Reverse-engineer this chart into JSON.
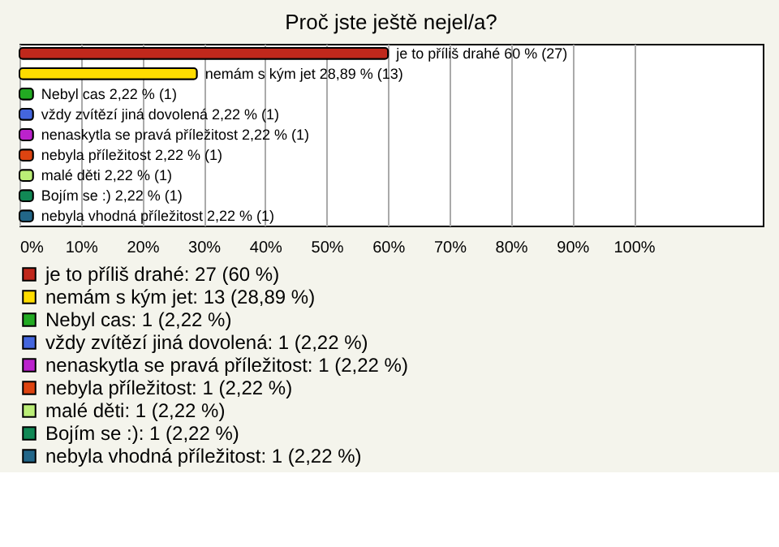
{
  "chart_data": {
    "type": "bar",
    "orientation": "horizontal",
    "title": "Proč jste ještě nejel/a?",
    "categories": [
      null,
      null,
      null,
      null,
      null,
      null,
      null,
      null,
      null
    ],
    "series": [
      {
        "name": "je to příliš drahé: 27 (60 %)",
        "color": "#c0281c",
        "values": [
          60,
          null,
          null,
          null,
          null,
          null,
          null,
          null,
          null
        ],
        "value_labels": [
          "je to příliš drahé 60 % (27)",
          null,
          null,
          null,
          null,
          null,
          null,
          null,
          null
        ]
      },
      {
        "name": "nemám s kým jet: 13 (28,89 %)",
        "color": "#ffdd00",
        "values": [
          null,
          28.89,
          null,
          null,
          null,
          null,
          null,
          null,
          null
        ],
        "value_labels": [
          null,
          "nemám s kým jet 28,89 % (13)",
          null,
          null,
          null,
          null,
          null,
          null,
          null
        ]
      },
      {
        "name": "Nebyl cas: 1 (2,22 %)",
        "color": "#22aa22",
        "values": [
          null,
          null,
          2.22,
          null,
          null,
          null,
          null,
          null,
          null
        ],
        "value_labels": [
          null,
          null,
          "Nebyl cas 2,22 % (1)",
          null,
          null,
          null,
          null,
          null,
          null
        ]
      },
      {
        "name": "vždy zvítězí jiná dovolená: 1 (2,22 %)",
        "color": "#4466dd",
        "values": [
          null,
          null,
          null,
          2.22,
          null,
          null,
          null,
          null,
          null
        ],
        "value_labels": [
          null,
          null,
          null,
          "vždy zvítězí jiná dovolená 2,22 % (1)",
          null,
          null,
          null,
          null,
          null
        ]
      },
      {
        "name": "nenaskytla se pravá příležitost: 1 (2,22 %)",
        "color": "#bb22cc",
        "values": [
          null,
          null,
          null,
          null,
          2.22,
          null,
          null,
          null,
          null
        ],
        "value_labels": [
          null,
          null,
          null,
          null,
          "nenaskytla se pravá příležitost 2,22 % (1)",
          null,
          null,
          null,
          null
        ]
      },
      {
        "name": "nebyla příležitost: 1 (2,22 %)",
        "color": "#dd4411",
        "values": [
          null,
          null,
          null,
          null,
          null,
          2.22,
          null,
          null,
          null
        ],
        "value_labels": [
          null,
          null,
          null,
          null,
          null,
          "nebyla příležitost 2,22 % (1)",
          null,
          null,
          null
        ]
      },
      {
        "name": "malé děti: 1 (2,22 %)",
        "color": "#bbee77",
        "values": [
          null,
          null,
          null,
          null,
          null,
          null,
          2.22,
          null,
          null
        ],
        "value_labels": [
          null,
          null,
          null,
          null,
          null,
          null,
          "malé děti 2,22 % (1)",
          null,
          null
        ]
      },
      {
        "name": "Bojím se :): 1 (2,22 %)",
        "color": "#118855",
        "values": [
          null,
          null,
          null,
          null,
          null,
          null,
          null,
          2.22,
          null
        ],
        "value_labels": [
          null,
          null,
          null,
          null,
          null,
          null,
          null,
          "Bojím se :) 2,22 % (1)",
          null
        ]
      },
      {
        "name": "nebyla vhodná příležitost: 1 (2,22 %)",
        "color": "#226688",
        "values": [
          null,
          null,
          null,
          null,
          null,
          null,
          null,
          null,
          2.22
        ],
        "value_labels": [
          null,
          null,
          null,
          null,
          null,
          null,
          null,
          null,
          "nebyla vhodná příležitost 2,22 % (1)"
        ]
      }
    ],
    "xlim": [
      0,
      121
    ],
    "xticks": [
      {
        "value": 0,
        "label": "0%"
      },
      {
        "value": 10,
        "label": "10%"
      },
      {
        "value": 20,
        "label": "20%"
      },
      {
        "value": 30,
        "label": "30%"
      },
      {
        "value": 40,
        "label": "40%"
      },
      {
        "value": 50,
        "label": "50%"
      },
      {
        "value": 60,
        "label": "60%"
      },
      {
        "value": 70,
        "label": "70%"
      },
      {
        "value": 80,
        "label": "80%"
      },
      {
        "value": 90,
        "label": "90%"
      },
      {
        "value": 100,
        "label": "100%"
      }
    ],
    "grid": "x",
    "legend": "bottom",
    "tick_labels": "x"
  }
}
